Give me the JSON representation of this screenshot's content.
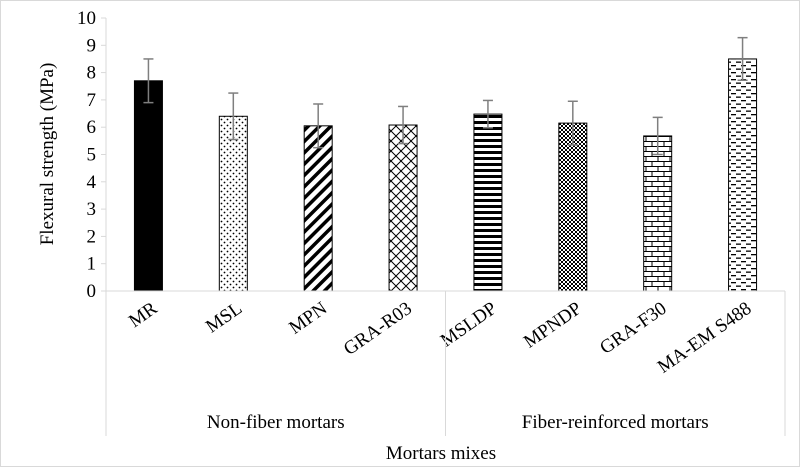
{
  "chart_data": {
    "type": "bar",
    "categories": [
      "MR",
      "MSL",
      "MPN",
      "GRA-R03",
      "MSLDP",
      "MPNDP",
      "GRA-F30",
      "MA-EM S488"
    ],
    "values": [
      7.7,
      6.4,
      6.05,
      6.08,
      6.48,
      6.15,
      5.68,
      8.5
    ],
    "error": [
      0.8,
      0.85,
      0.8,
      0.68,
      0.5,
      0.8,
      0.68,
      0.78
    ],
    "patterns": [
      "solid",
      "dots",
      "diagonal-stripes",
      "diagonal-cross",
      "horizontal-stripes",
      "dense-checker",
      "brick",
      "horizontal-dashes"
    ],
    "groups": [
      {
        "label": "Non-fiber mortars",
        "categories": [
          "MR",
          "MSL",
          "MPN",
          "GRA-R03"
        ]
      },
      {
        "label": "Fiber-reinforced mortars",
        "categories": [
          "MSLDP",
          "MPNDP",
          "GRA-F30",
          "MA-EM S488"
        ]
      }
    ],
    "xlabel": "Mortars mixes",
    "ylabel": "Flexural  strength (MPa)",
    "ylim": [
      0,
      10
    ],
    "yticks": [
      0,
      1,
      2,
      3,
      4,
      5,
      6,
      7,
      8,
      9,
      10
    ],
    "grid": false,
    "legend": "none",
    "colors": {
      "bar_fill": "#000000",
      "bar_background": "#ffffff",
      "error_bar": "#7f7f7f",
      "axis": "#d9d9d9"
    }
  }
}
